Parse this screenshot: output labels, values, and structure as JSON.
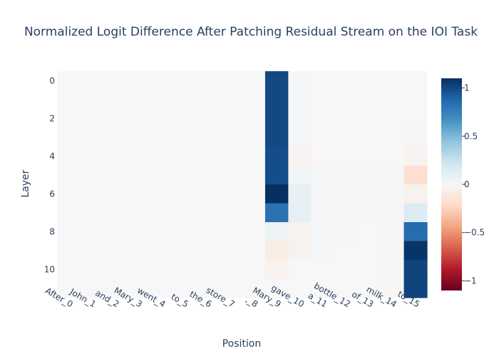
{
  "chart_data": {
    "type": "heatmap",
    "title": "Normalized Logit Difference After Patching Residual Stream on the IOI Task",
    "xlabel": "Position",
    "ylabel": "Layer",
    "x_categories": [
      "After_0",
      "John_1",
      "and_2",
      "Mary_3",
      "went_4",
      "to_5",
      "the_6",
      "store_7",
      ",_8",
      "Mary_9",
      "gave_10",
      "a_11",
      "bottle_12",
      "of_13",
      "milk_14",
      "to_15"
    ],
    "y_categories": [
      0,
      1,
      2,
      3,
      4,
      5,
      6,
      7,
      8,
      9,
      10,
      11
    ],
    "y_tick_labels": [
      "0",
      "2",
      "4",
      "6",
      "8",
      "10"
    ],
    "y_tick_values": [
      0,
      2,
      4,
      6,
      8,
      10
    ],
    "colorscale": "RdBu",
    "zmin": -1.1,
    "zmax": 1.1,
    "colorbar_ticks": [
      1,
      0.5,
      0,
      -0.5,
      -1
    ],
    "colorbar_tick_labels": [
      "1",
      "0.5",
      "0",
      "−0.5",
      "−1"
    ],
    "z": [
      [
        0,
        0,
        0,
        0,
        0,
        0,
        0,
        0,
        0,
        1.0,
        0.01,
        0,
        0,
        0,
        0,
        0
      ],
      [
        0,
        0,
        0,
        0,
        0,
        0,
        0,
        0,
        0,
        1.0,
        0.01,
        0,
        0,
        0,
        0,
        0
      ],
      [
        0,
        0,
        0,
        0,
        0,
        0,
        0,
        0,
        0,
        1.0,
        0.01,
        0,
        0,
        0,
        0,
        0
      ],
      [
        0,
        0,
        0,
        0,
        0,
        0,
        0,
        0,
        0,
        1.0,
        0.01,
        0,
        0,
        0,
        0,
        0.01
      ],
      [
        0,
        0,
        0,
        0,
        0,
        0,
        0,
        0,
        0,
        0.98,
        -0.03,
        0,
        0,
        0,
        0,
        -0.03
      ],
      [
        0,
        0,
        0,
        0,
        0,
        0,
        0,
        0,
        0,
        0.98,
        0.03,
        0.01,
        0.01,
        0.01,
        0.01,
        -0.18
      ],
      [
        0,
        0,
        0,
        0,
        0,
        0,
        0,
        0,
        0,
        1.1,
        0.08,
        0.01,
        0.01,
        0.01,
        0.01,
        -0.05
      ],
      [
        0,
        0,
        0,
        0,
        0,
        0,
        0,
        0,
        0,
        0.82,
        0.1,
        0.01,
        0.01,
        0.01,
        0.01,
        0.15
      ],
      [
        0,
        0,
        0,
        0,
        0,
        0,
        0,
        0,
        0,
        0.05,
        -0.04,
        0.02,
        0.01,
        0.0,
        -0.01,
        0.85
      ],
      [
        0,
        0,
        0,
        0,
        0,
        0,
        0,
        0,
        0,
        -0.09,
        -0.04,
        0.01,
        0.0,
        0.0,
        -0.01,
        1.08
      ],
      [
        0,
        0,
        0,
        0,
        0,
        0,
        0,
        0,
        0,
        -0.03,
        0.0,
        0.0,
        0.0,
        0.0,
        -0.01,
        1.02
      ],
      [
        0,
        0,
        0,
        0,
        0,
        0,
        0,
        0,
        0,
        0.0,
        0.0,
        0.0,
        0.0,
        0.0,
        -0.01,
        1.02
      ]
    ]
  }
}
